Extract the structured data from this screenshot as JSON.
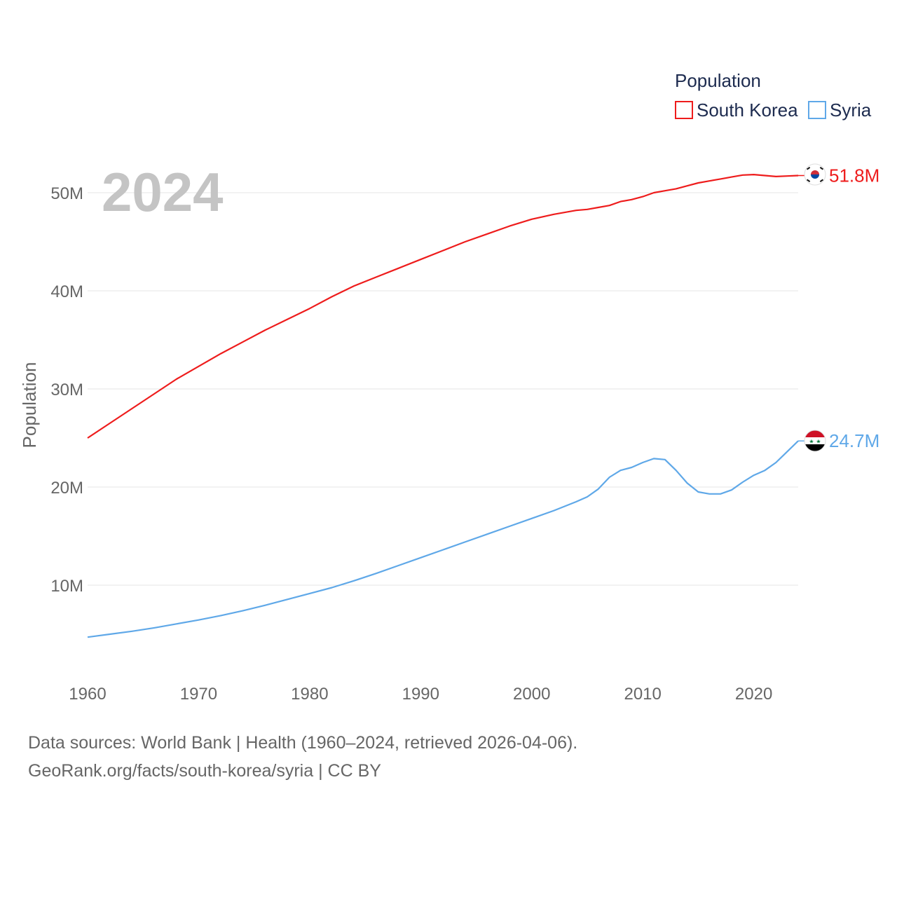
{
  "chart_data": {
    "type": "line",
    "title": "",
    "year_label": "2024",
    "ylabel": "Population",
    "xlabel": "",
    "xlim": [
      1960,
      2024
    ],
    "ylim": [
      0,
      55000000
    ],
    "x_ticks": [
      1960,
      1970,
      1980,
      1990,
      2000,
      2010,
      2020
    ],
    "y_ticks": [
      10000000,
      20000000,
      30000000,
      40000000,
      50000000
    ],
    "y_tick_labels": [
      "10M",
      "20M",
      "30M",
      "40M",
      "50M"
    ],
    "legend_title": "Population",
    "legend_position": "top-right",
    "series": [
      {
        "name": "South Korea",
        "color": "#ee1c1c",
        "end_label": "51.8M",
        "flag": "south-korea-flag-icon",
        "x": [
          1960,
          1962,
          1964,
          1966,
          1968,
          1970,
          1972,
          1974,
          1976,
          1978,
          1980,
          1982,
          1984,
          1986,
          1988,
          1990,
          1992,
          1994,
          1996,
          1998,
          2000,
          2002,
          2004,
          2005,
          2006,
          2007,
          2008,
          2009,
          2010,
          2011,
          2012,
          2013,
          2014,
          2015,
          2016,
          2017,
          2018,
          2019,
          2020,
          2021,
          2022,
          2023,
          2024
        ],
        "values": [
          25000000,
          26500000,
          28000000,
          29500000,
          31000000,
          32300000,
          33600000,
          34800000,
          36000000,
          37100000,
          38200000,
          39400000,
          40500000,
          41400000,
          42300000,
          43200000,
          44100000,
          45000000,
          45800000,
          46600000,
          47300000,
          47800000,
          48200000,
          48300000,
          48500000,
          48700000,
          49100000,
          49300000,
          49600000,
          50000000,
          50200000,
          50400000,
          50700000,
          51000000,
          51200000,
          51400000,
          51600000,
          51800000,
          51850000,
          51750000,
          51650000,
          51700000,
          51750000
        ]
      },
      {
        "name": "Syria",
        "color": "#5fa8e8",
        "end_label": "24.7M",
        "flag": "syria-flag-icon",
        "x": [
          1960,
          1962,
          1964,
          1966,
          1968,
          1970,
          1972,
          1974,
          1976,
          1978,
          1980,
          1982,
          1984,
          1986,
          1988,
          1990,
          1992,
          1994,
          1996,
          1998,
          2000,
          2002,
          2004,
          2005,
          2006,
          2007,
          2008,
          2009,
          2010,
          2011,
          2012,
          2013,
          2014,
          2015,
          2016,
          2017,
          2018,
          2019,
          2020,
          2021,
          2022,
          2023,
          2024
        ],
        "values": [
          4700000,
          5000000,
          5300000,
          5650000,
          6050000,
          6450000,
          6900000,
          7400000,
          7950000,
          8550000,
          9150000,
          9750000,
          10450000,
          11200000,
          12000000,
          12800000,
          13600000,
          14400000,
          15200000,
          16000000,
          16800000,
          17600000,
          18500000,
          19000000,
          19800000,
          21000000,
          21700000,
          22000000,
          22500000,
          22900000,
          22800000,
          21700000,
          20400000,
          19500000,
          19300000,
          19300000,
          19700000,
          20500000,
          21200000,
          21700000,
          22500000,
          23600000,
          24700000
        ]
      }
    ]
  },
  "footer": {
    "line1": "Data sources: World Bank | Health (1960–2024, retrieved 2026-04-06).",
    "line2": "GeoRank.org/facts/south-korea/syria | CC BY"
  }
}
